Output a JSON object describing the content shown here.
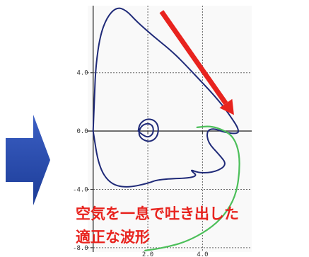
{
  "chart_data": {
    "type": "line",
    "title": "",
    "xlabel": "",
    "ylabel": "",
    "xlim": [
      -0.2,
      5.8
    ],
    "ylim": [
      -8.3,
      8.6
    ],
    "grid": true,
    "x_ticks": [
      2.0,
      4.0
    ],
    "y_ticks": [
      4.0,
      0.0,
      -4.0,
      -8.0
    ],
    "x_tick_labels": [
      "2.0",
      "4.0"
    ],
    "y_tick_labels": [
      "4.0",
      "0.0",
      "-4.0",
      "-8.0"
    ],
    "series": [
      {
        "color": "#1f2a78",
        "points": [
          [
            0.0,
            0.0
          ],
          [
            0.05,
            2.5
          ],
          [
            0.1,
            4.5
          ],
          [
            0.25,
            6.5
          ],
          [
            0.5,
            7.8
          ],
          [
            0.85,
            8.5
          ],
          [
            1.2,
            8.3
          ],
          [
            1.6,
            7.5
          ],
          [
            2.2,
            6.5
          ],
          [
            2.8,
            5.6
          ],
          [
            3.3,
            4.7
          ],
          [
            3.9,
            3.5
          ],
          [
            4.4,
            2.5
          ],
          [
            4.8,
            1.6
          ],
          [
            5.1,
            0.8
          ],
          [
            5.3,
            0.2
          ],
          [
            5.32,
            -0.2
          ],
          [
            4.8,
            -0.1
          ],
          [
            4.4,
            0.2
          ],
          [
            4.15,
            0.0
          ],
          [
            4.2,
            -0.8
          ],
          [
            4.6,
            -1.6
          ],
          [
            4.9,
            -2.3
          ],
          [
            4.5,
            -2.8
          ],
          [
            3.9,
            -2.9
          ],
          [
            3.5,
            -2.6
          ],
          [
            3.9,
            -3.2
          ],
          [
            2.4,
            -3.3
          ],
          [
            2.0,
            -3.6
          ],
          [
            1.2,
            -3.9
          ],
          [
            0.6,
            -3.6
          ],
          [
            0.2,
            -2.4
          ],
          [
            0.0,
            0.0
          ]
        ]
      },
      {
        "color": "#1f2a78",
        "points": [
          [
            1.65,
            0.0
          ],
          [
            1.7,
            0.5
          ],
          [
            1.95,
            0.85
          ],
          [
            2.25,
            0.75
          ],
          [
            2.4,
            0.3
          ],
          [
            2.35,
            -0.4
          ],
          [
            2.1,
            -0.75
          ],
          [
            1.8,
            -0.6
          ],
          [
            1.65,
            -0.2
          ],
          [
            1.75,
            0.35
          ],
          [
            2.0,
            0.55
          ],
          [
            2.2,
            0.35
          ],
          [
            2.2,
            -0.2
          ],
          [
            2.0,
            -0.45
          ],
          [
            1.8,
            -0.25
          ],
          [
            1.65,
            0.0
          ]
        ]
      },
      {
        "color": "#4cbf5a",
        "points": [
          [
            3.8,
            0.25
          ],
          [
            4.3,
            0.35
          ],
          [
            4.8,
            0.05
          ],
          [
            5.15,
            -0.45
          ],
          [
            5.35,
            -1.5
          ],
          [
            5.35,
            -3.0
          ],
          [
            5.2,
            -4.5
          ],
          [
            4.8,
            -5.8
          ],
          [
            4.2,
            -6.8
          ],
          [
            3.4,
            -7.6
          ],
          [
            2.6,
            -8.0
          ],
          [
            1.9,
            -8.2
          ]
        ]
      }
    ],
    "arrow": {
      "color": "#e8231e",
      "from": [
        2.5,
        8.2
      ],
      "to": [
        5.15,
        1.1
      ]
    },
    "annotations": [
      "空気を一息で吐き出した",
      "適正な波形"
    ],
    "side_arrow_color": "#2347a0"
  }
}
